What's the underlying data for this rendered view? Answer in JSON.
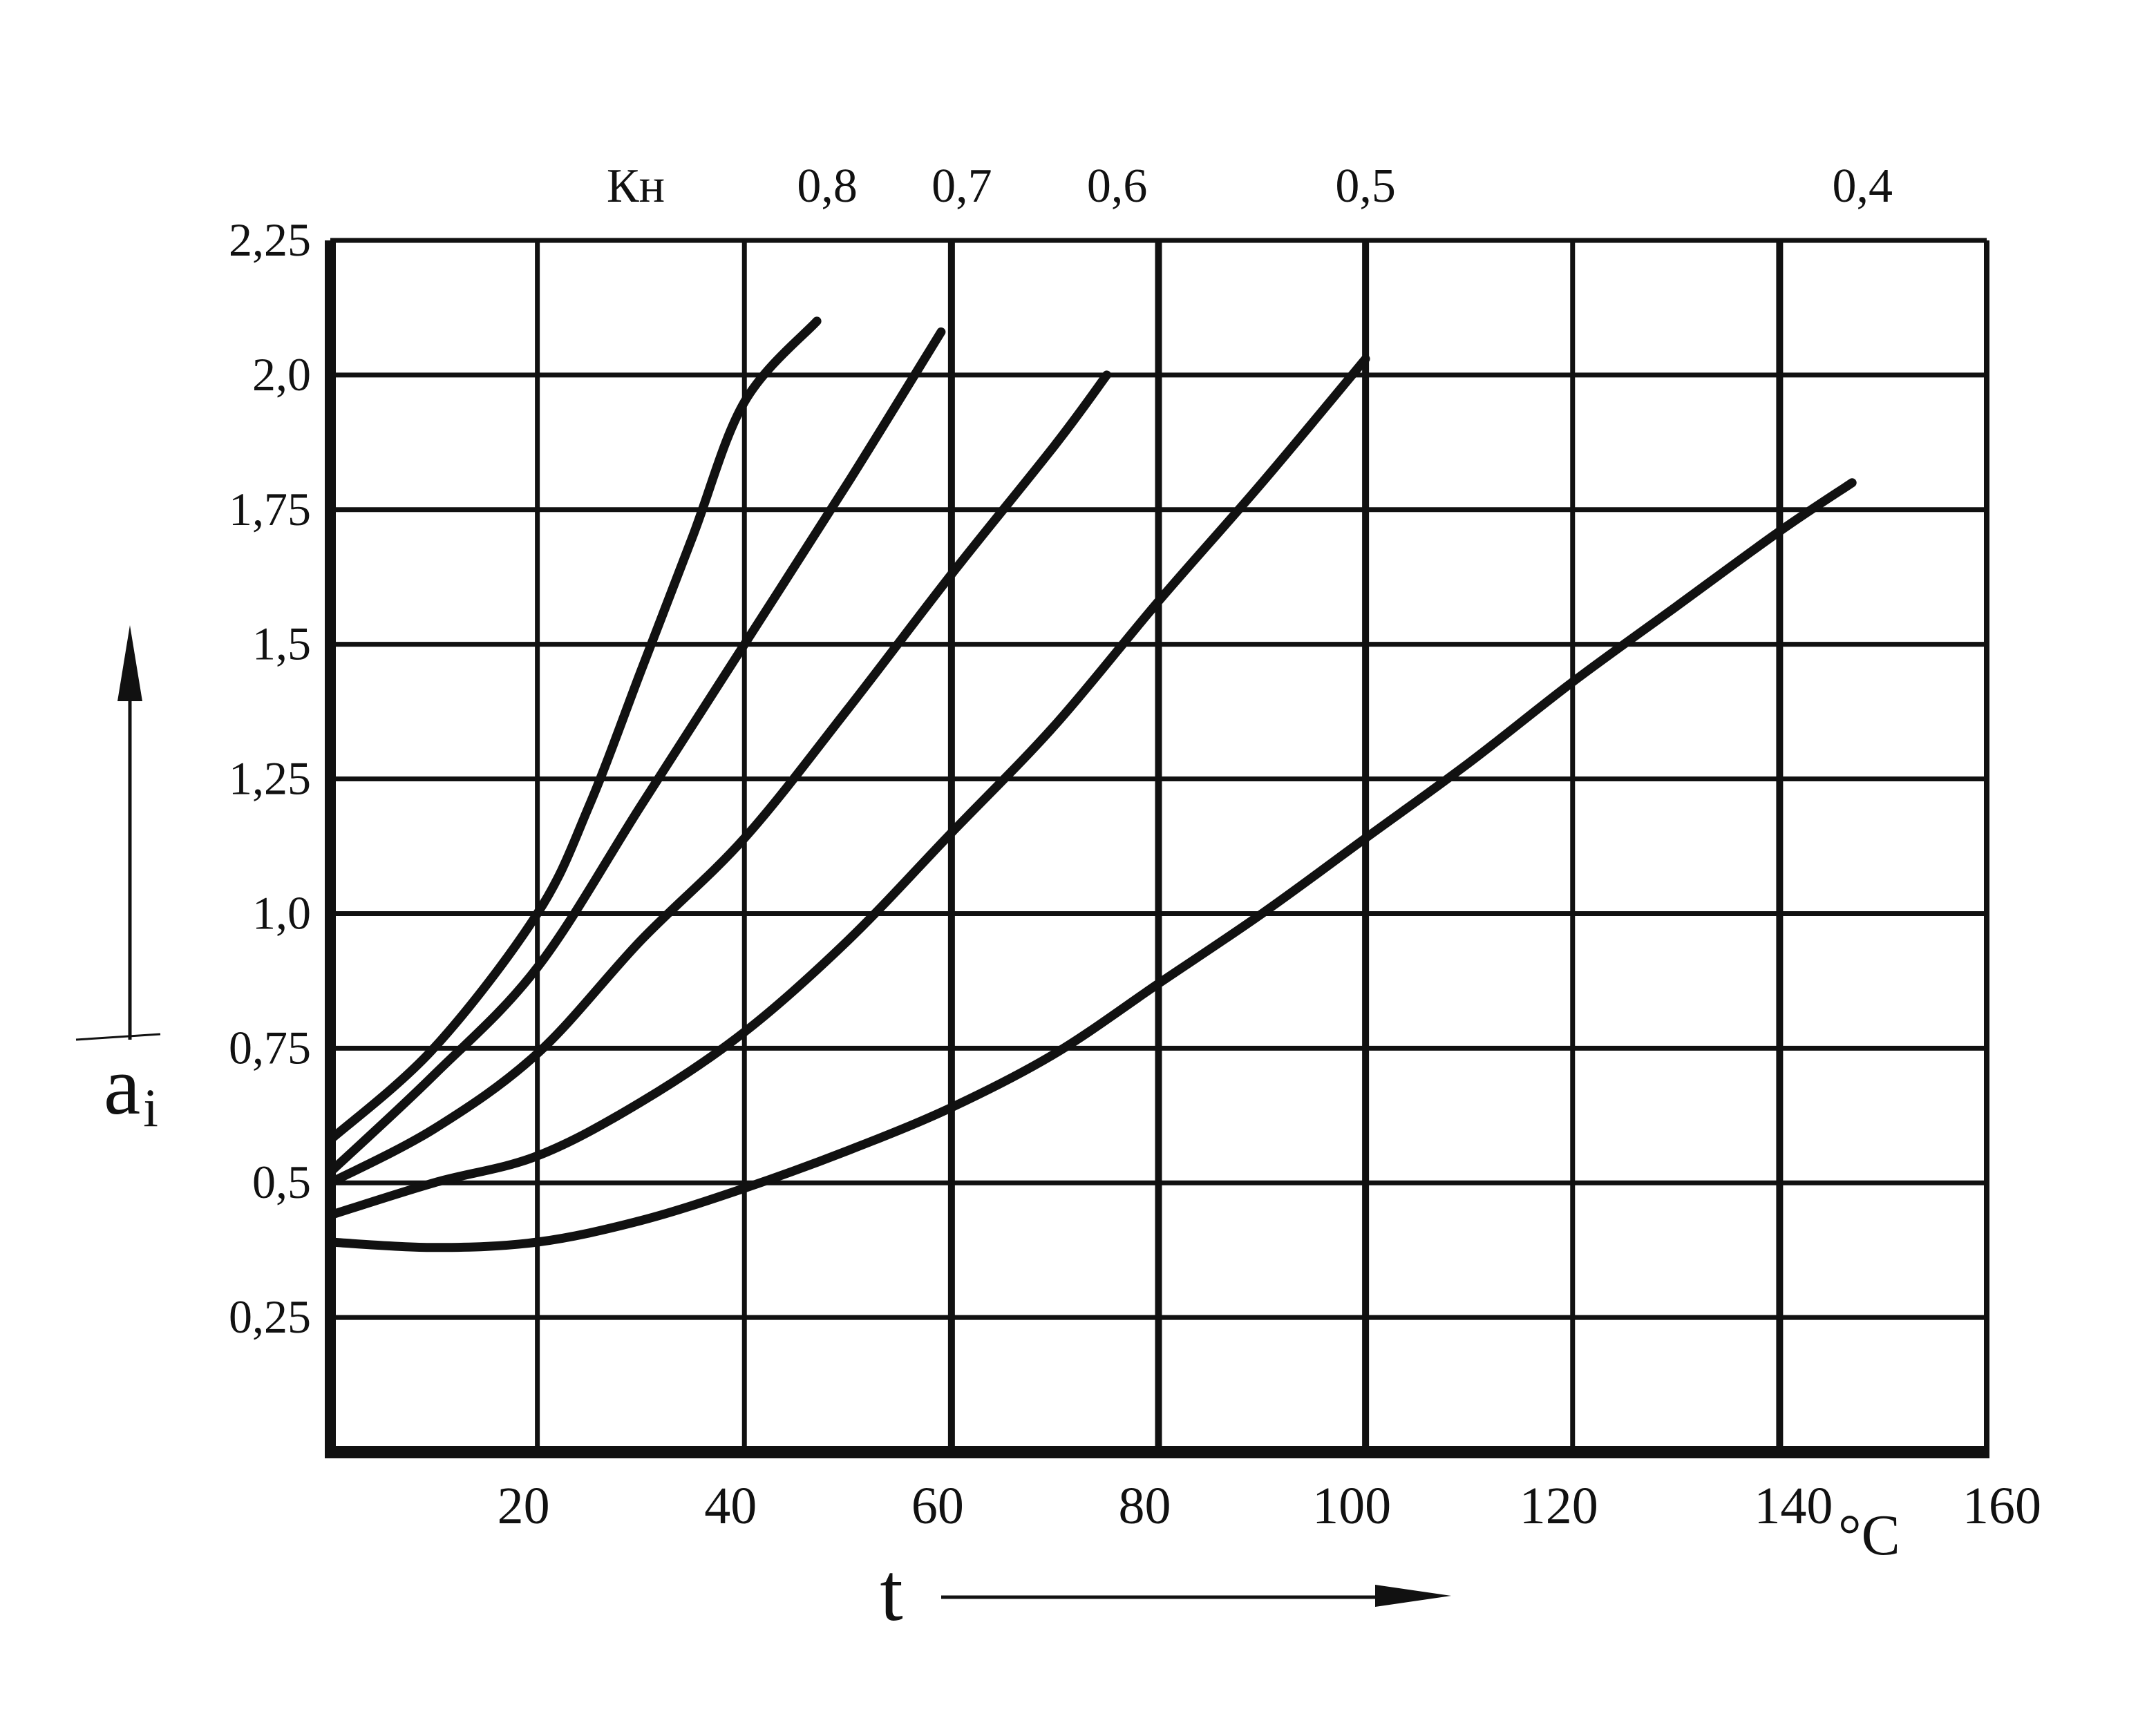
{
  "chart_data": {
    "type": "line",
    "xlabel": "t",
    "xunit": "°C",
    "ylabel": "a",
    "ylabel_sub": "i",
    "legend_title": "Кн",
    "xlim": [
      0,
      160
    ],
    "ylim": [
      0,
      2.25
    ],
    "x_ticks": [
      {
        "value": 20,
        "label": "20"
      },
      {
        "value": 40,
        "label": "40"
      },
      {
        "value": 60,
        "label": "60"
      },
      {
        "value": 80,
        "label": "80"
      },
      {
        "value": 100,
        "label": "100"
      },
      {
        "value": 120,
        "label": "120"
      },
      {
        "value": 140,
        "label": "140"
      },
      {
        "value": 160,
        "label": "160"
      }
    ],
    "y_ticks": [
      {
        "value": 0.25,
        "label": "0,25"
      },
      {
        "value": 0.5,
        "label": "0,5"
      },
      {
        "value": 0.75,
        "label": "0,75"
      },
      {
        "value": 1.0,
        "label": "1,0"
      },
      {
        "value": 1.25,
        "label": "1,25"
      },
      {
        "value": 1.5,
        "label": "1,5"
      },
      {
        "value": 1.75,
        "label": "1,75"
      },
      {
        "value": 2.0,
        "label": "2,0"
      },
      {
        "value": 2.25,
        "label": "2,25"
      }
    ],
    "grid": true,
    "series": [
      {
        "name": "0,8",
        "label_at_x": 48,
        "x": [
          0,
          10,
          20,
          25,
          30,
          35,
          40,
          47
        ],
        "y": [
          0.58,
          0.75,
          1.0,
          1.2,
          1.45,
          1.7,
          1.95,
          2.1
        ]
      },
      {
        "name": "0,7",
        "label_at_x": 61,
        "x": [
          0,
          10,
          20,
          30,
          40,
          50,
          59
        ],
        "y": [
          0.52,
          0.7,
          0.9,
          1.2,
          1.5,
          1.8,
          2.08
        ]
      },
      {
        "name": "0,6",
        "label_at_x": 76,
        "x": [
          0,
          10,
          20,
          30,
          40,
          50,
          60,
          70,
          75
        ],
        "y": [
          0.5,
          0.6,
          0.74,
          0.95,
          1.14,
          1.38,
          1.63,
          1.87,
          2.0
        ]
      },
      {
        "name": "0,5",
        "label_at_x": 100,
        "x": [
          0,
          10,
          20,
          30,
          40,
          50,
          60,
          70,
          80,
          90,
          100
        ],
        "y": [
          0.44,
          0.5,
          0.55,
          0.65,
          0.78,
          0.95,
          1.15,
          1.35,
          1.58,
          1.8,
          2.03
        ]
      },
      {
        "name": "0,4",
        "label_at_x": 148,
        "x": [
          0,
          10,
          20,
          30,
          40,
          50,
          60,
          70,
          80,
          90,
          100,
          110,
          120,
          130,
          140,
          147
        ],
        "y": [
          0.39,
          0.38,
          0.39,
          0.43,
          0.49,
          0.56,
          0.64,
          0.74,
          0.87,
          1.0,
          1.14,
          1.28,
          1.43,
          1.57,
          1.71,
          1.8
        ]
      }
    ]
  },
  "colors": {
    "ink": "#111111",
    "paper": "#ffffff"
  }
}
